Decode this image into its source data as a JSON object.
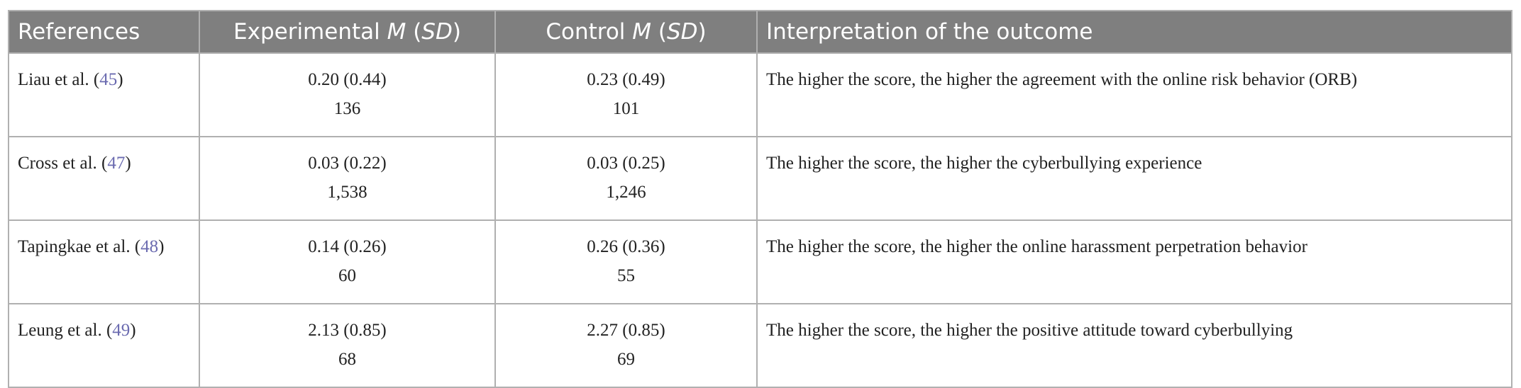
{
  "table": {
    "header": [
      [
        {
          "text": "References",
          "italic": false
        }
      ],
      [
        {
          "text": "Experimental ",
          "italic": false
        },
        {
          "text": "M",
          "italic": true
        },
        {
          "text": " (",
          "italic": false
        },
        {
          "text": "SD",
          "italic": true
        },
        {
          "text": ")",
          "italic": false
        }
      ],
      [
        {
          "text": "Control ",
          "italic": false
        },
        {
          "text": "M",
          "italic": true
        },
        {
          "text": " (",
          "italic": false
        },
        {
          "text": "SD",
          "italic": true
        },
        {
          "text": ")",
          "italic": false
        }
      ],
      [
        {
          "text": "Interpretation of the outcome",
          "italic": false
        }
      ]
    ],
    "rows": [
      {
        "reference": [
          "Liau et al. (",
          "45",
          ")"
        ],
        "experimental": [
          "0.20 (0.44)",
          "136"
        ],
        "control": [
          "0.23 (0.49)",
          "101"
        ],
        "interpretation": "The higher the score, the higher the agreement with the online risk behavior (ORB)"
      },
      {
        "reference": [
          "Cross et al. (",
          "47",
          ")"
        ],
        "experimental": [
          "0.03 (0.22)",
          "1,538"
        ],
        "control": [
          "0.03 (0.25)",
          "1,246"
        ],
        "interpretation": "The higher the score, the higher the cyberbullying experience"
      },
      {
        "reference": [
          "Tapingkae et al. (",
          "48",
          ")"
        ],
        "experimental": [
          "0.14 (0.26)",
          "60"
        ],
        "control": [
          "0.26 (0.36)",
          "55"
        ],
        "interpretation": "The higher the score, the higher the online harassment perpetration behavior"
      },
      {
        "reference": [
          "Leung et al. (",
          "49",
          ")"
        ],
        "experimental": [
          "2.13 (0.85)",
          "68"
        ],
        "control": [
          "2.27 (0.85)",
          "69"
        ],
        "interpretation": "The higher the score, the higher the positive attitude toward cyberbullying"
      }
    ]
  }
}
